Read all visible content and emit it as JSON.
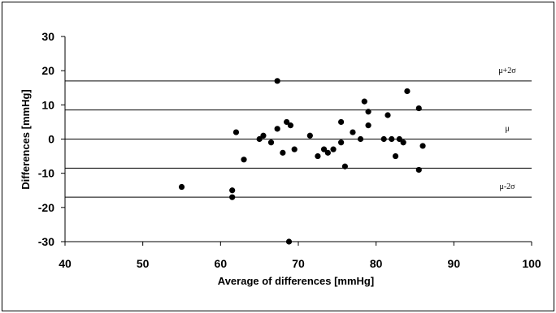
{
  "chart_data": {
    "type": "scatter",
    "title": "",
    "xlabel": "Average of differences [mmHg]",
    "ylabel": "Differences [mmHg]",
    "xlim": [
      40,
      100
    ],
    "ylim": [
      -30,
      30
    ],
    "x_ticks": [
      40,
      50,
      60,
      70,
      80,
      90,
      100
    ],
    "y_ticks": [
      -30,
      -20,
      -10,
      0,
      10,
      20,
      30
    ],
    "grid": false,
    "legend": "none",
    "marker_color": "#000000",
    "reference_lines": [
      {
        "label": "μ+2σ",
        "y": 17
      },
      {
        "label": "",
        "y": 8.5
      },
      {
        "label": "μ",
        "y": 0
      },
      {
        "label": "",
        "y": -8.5
      },
      {
        "label": "μ-2σ",
        "y": -17
      }
    ],
    "series": [
      {
        "points": [
          [
            55,
            -14
          ],
          [
            61.5,
            -15
          ],
          [
            61.5,
            -17
          ],
          [
            62,
            2
          ],
          [
            63,
            -6
          ],
          [
            65,
            0
          ],
          [
            65.5,
            1
          ],
          [
            66.5,
            -1
          ],
          [
            67.3,
            17
          ],
          [
            67.3,
            3
          ],
          [
            68,
            -4
          ],
          [
            68.5,
            5
          ],
          [
            69,
            4
          ],
          [
            69.5,
            -3
          ],
          [
            68.8,
            -30
          ],
          [
            71.5,
            1
          ],
          [
            72.5,
            -5
          ],
          [
            73.3,
            -3
          ],
          [
            73.8,
            -4
          ],
          [
            74.5,
            -3
          ],
          [
            75.5,
            5
          ],
          [
            75.5,
            -1
          ],
          [
            76,
            -8
          ],
          [
            77,
            2
          ],
          [
            78,
            0
          ],
          [
            78.5,
            11
          ],
          [
            79,
            8
          ],
          [
            79,
            4
          ],
          [
            81,
            0
          ],
          [
            81.5,
            7
          ],
          [
            82,
            0
          ],
          [
            82.5,
            -5
          ],
          [
            83,
            0
          ],
          [
            83.5,
            -1
          ],
          [
            84,
            14
          ],
          [
            85.5,
            9
          ],
          [
            85.5,
            -9
          ],
          [
            86,
            -2
          ]
        ]
      }
    ]
  }
}
